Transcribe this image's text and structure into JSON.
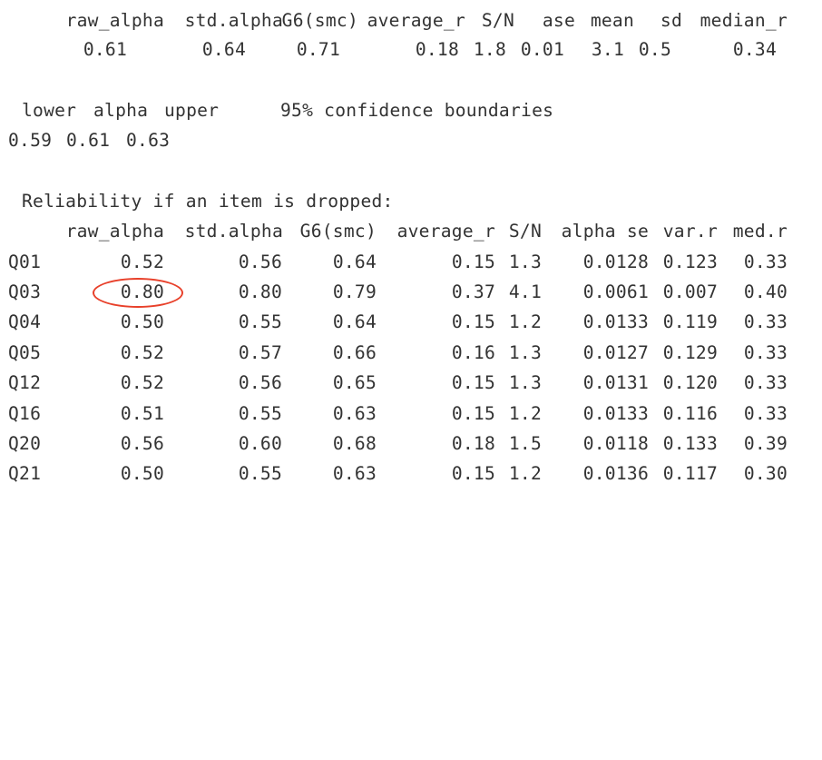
{
  "summary": {
    "headers": [
      "raw_alpha",
      "std.alpha",
      "G6(smc)",
      "average_r",
      "S/N",
      "ase",
      "mean",
      "sd",
      "median_r"
    ],
    "values": [
      "0.61",
      "0.64",
      "0.71",
      "0.18",
      "1.8",
      "0.01",
      "3.1",
      "0.5",
      "0.34"
    ]
  },
  "confidence": {
    "headers": [
      "lower",
      "alpha",
      "upper"
    ],
    "label": "95% confidence boundaries",
    "values": [
      "0.59",
      "0.61",
      "0.63"
    ]
  },
  "dropped": {
    "title": "Reliability if an item is dropped:",
    "headers": [
      "raw_alpha",
      "std.alpha",
      "G6(smc)",
      "average_r",
      "S/N",
      "alpha se",
      "var.r",
      "med.r"
    ],
    "rows": [
      {
        "item": "Q01",
        "cells": [
          "0.52",
          "0.56",
          "0.64",
          "0.15",
          "1.3",
          "0.0128",
          "0.123",
          "0.33"
        ]
      },
      {
        "item": "Q03",
        "cells": [
          "0.80",
          "0.80",
          "0.79",
          "0.37",
          "4.1",
          "0.0061",
          "0.007",
          "0.40"
        ]
      },
      {
        "item": "Q04",
        "cells": [
          "0.50",
          "0.55",
          "0.64",
          "0.15",
          "1.2",
          "0.0133",
          "0.119",
          "0.33"
        ]
      },
      {
        "item": "Q05",
        "cells": [
          "0.52",
          "0.57",
          "0.66",
          "0.16",
          "1.3",
          "0.0127",
          "0.129",
          "0.33"
        ]
      },
      {
        "item": "Q12",
        "cells": [
          "0.52",
          "0.56",
          "0.65",
          "0.15",
          "1.3",
          "0.0131",
          "0.120",
          "0.33"
        ]
      },
      {
        "item": "Q16",
        "cells": [
          "0.51",
          "0.55",
          "0.63",
          "0.15",
          "1.2",
          "0.0133",
          "0.116",
          "0.33"
        ]
      },
      {
        "item": "Q20",
        "cells": [
          "0.56",
          "0.60",
          "0.68",
          "0.18",
          "1.5",
          "0.0118",
          "0.133",
          "0.39"
        ]
      },
      {
        "item": "Q21",
        "cells": [
          "0.50",
          "0.55",
          "0.63",
          "0.15",
          "1.2",
          "0.0136",
          "0.117",
          "0.30"
        ]
      }
    ]
  },
  "annotation": {
    "shape": "ellipse",
    "color": "#e8402a"
  }
}
